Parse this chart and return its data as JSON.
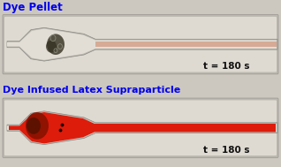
{
  "title1": "Dye Pellet",
  "title2": "Dye Infused Latex Supraparticle",
  "label1": "t = 180 s",
  "label2": "t = 180 s",
  "title_color": "#0000ee",
  "label_color": "#111111",
  "bg_color": "#d4cfc8",
  "panel_bg": "#ccc8c0",
  "device_outer": "#bbb8b0",
  "device_inner": "#dedad2",
  "channel_light": "#e2ded6",
  "dye_red": "#dd1100",
  "dye_red2": "#cc2200",
  "dye_dark": "#881100",
  "pellet_color": "#444030",
  "faint_dye": "#cc7755",
  "figure_width": 3.18,
  "figure_height": 1.89,
  "dpi": 100
}
